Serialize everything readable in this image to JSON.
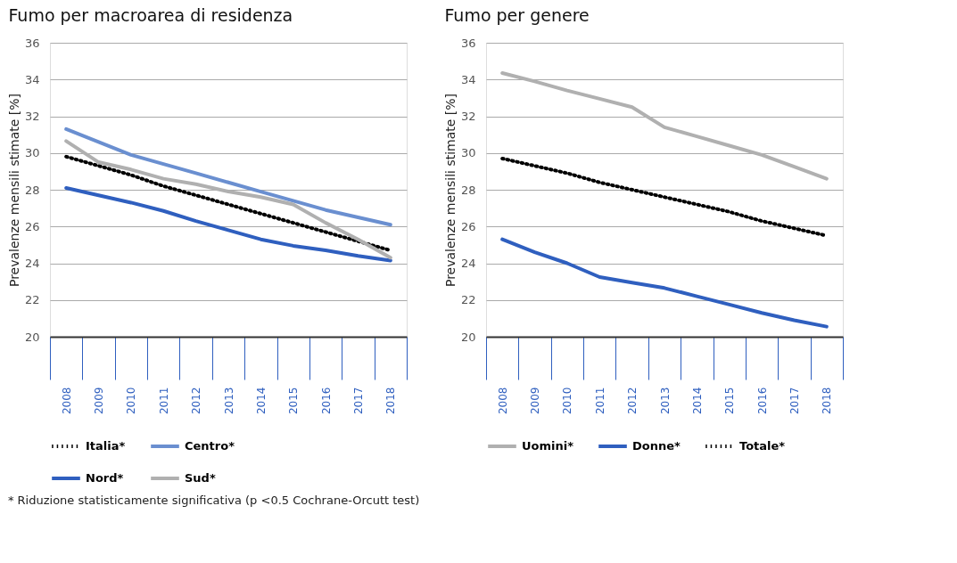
{
  "chart_data": [
    {
      "type": "line",
      "title": "Fumo per macroarea di residenza",
      "ylabel": "Prevalenze mensili stimate  [%]",
      "categories": [
        "2008",
        "2009",
        "2010",
        "2011",
        "2012",
        "2013",
        "2014",
        "2015",
        "2016",
        "2017",
        "2018"
      ],
      "series": [
        {
          "name": "Italia*",
          "color": "#000000",
          "line_style": "dotted",
          "values": [
            29.8,
            29.3,
            28.8,
            28.2,
            27.7,
            27.2,
            26.7,
            26.2,
            25.7,
            25.2,
            24.7
          ]
        },
        {
          "name": "Centro*",
          "color": "#6a8fd0",
          "line_style": "solid",
          "values": [
            31.3,
            30.6,
            29.9,
            29.4,
            28.9,
            28.4,
            27.9,
            27.4,
            26.9,
            26.5,
            26.1
          ]
        },
        {
          "name": "Nord*",
          "color": "#2f5fbf",
          "line_style": "solid",
          "values": [
            28.1,
            27.7,
            27.3,
            26.85,
            26.3,
            25.8,
            25.3,
            24.95,
            24.7,
            24.4,
            24.15
          ]
        },
        {
          "name": "Sud*",
          "color": "#b0b0b0",
          "line_style": "solid",
          "values": [
            30.65,
            29.5,
            29.1,
            28.6,
            28.3,
            27.9,
            27.6,
            27.2,
            26.2,
            25.3,
            24.3
          ]
        }
      ],
      "ylim": [
        20,
        36
      ],
      "yticks": [
        20,
        22,
        24,
        26,
        28,
        30,
        32,
        34,
        36
      ],
      "grid": "y",
      "legend": "bottom",
      "marker": "none",
      "annotations": [
        "* Riduzione statisticamente significativa (p <0.5 Cochrane-Orcutt test)"
      ]
    },
    {
      "type": "line",
      "title": "Fumo per genere",
      "ylabel": "Prevalenze mensili stimate  [%]",
      "categories": [
        "2008",
        "2009",
        "2010",
        "2011",
        "2012",
        "2013",
        "2014",
        "2015",
        "2016",
        "2017",
        "2018"
      ],
      "series": [
        {
          "name": "Uomini*",
          "color": "#b0b0b0",
          "line_style": "solid",
          "values": [
            34.35,
            33.9,
            33.4,
            32.95,
            32.5,
            31.4,
            30.9,
            30.4,
            29.9,
            29.25,
            28.6
          ]
        },
        {
          "name": "Donne*",
          "color": "#2f5fbf",
          "line_style": "solid",
          "values": [
            25.3,
            24.6,
            24.0,
            23.25,
            22.95,
            22.65,
            22.2,
            21.75,
            21.3,
            20.9,
            20.55
          ]
        },
        {
          "name": "Totale*",
          "color": "#000000",
          "line_style": "dotted",
          "values": [
            29.7,
            29.3,
            28.9,
            28.4,
            28.0,
            27.6,
            27.2,
            26.8,
            26.3,
            25.9,
            25.5
          ]
        }
      ],
      "ylim": [
        20,
        36
      ],
      "yticks": [
        20,
        22,
        24,
        26,
        28,
        30,
        32,
        34,
        36
      ],
      "grid": "y",
      "legend": "bottom",
      "marker": "none"
    }
  ]
}
